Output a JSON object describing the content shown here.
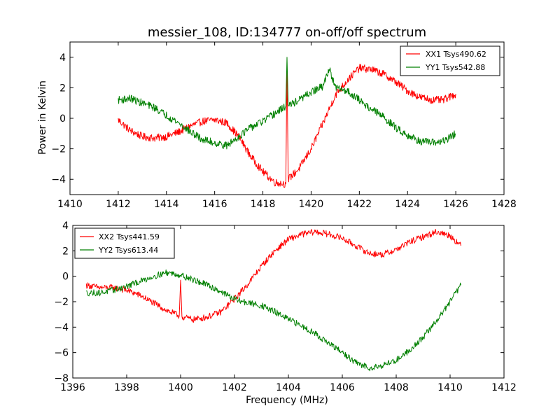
{
  "figure": {
    "title": "messier_108, ID:134777 on-off/off spectrum",
    "ylabel": "Power in Kelvin",
    "xlabel": "Frequency (MHz)"
  },
  "chart_data": [
    {
      "type": "line",
      "title": "messier_108, ID:134777 on-off/off spectrum",
      "xlabel": "",
      "ylabel": "Power in Kelvin",
      "xlim": [
        1410,
        1428
      ],
      "ylim": [
        -5,
        5
      ],
      "xticks": [
        1410,
        1412,
        1414,
        1416,
        1418,
        1420,
        1422,
        1424,
        1426,
        1428
      ],
      "yticks": [
        -4,
        -2,
        0,
        2,
        4
      ],
      "legend_position": "top-right",
      "series": [
        {
          "name": "XX1 Tsys490.62",
          "color": "#ff0000",
          "noise": 0.25,
          "points": [
            [
              1412.0,
              -0.1
            ],
            [
              1412.5,
              -0.8
            ],
            [
              1413.0,
              -1.2
            ],
            [
              1413.5,
              -1.3
            ],
            [
              1414.0,
              -1.2
            ],
            [
              1414.5,
              -0.9
            ],
            [
              1415.0,
              -0.5
            ],
            [
              1415.5,
              -0.2
            ],
            [
              1416.0,
              -0.1
            ],
            [
              1416.5,
              -0.3
            ],
            [
              1417.0,
              -1.2
            ],
            [
              1417.5,
              -2.5
            ],
            [
              1418.0,
              -3.5
            ],
            [
              1418.5,
              -4.2
            ],
            [
              1418.95,
              -4.3
            ],
            [
              1419.0,
              3.3
            ],
            [
              1419.05,
              -4.0
            ],
            [
              1419.5,
              -3.3
            ],
            [
              1420.0,
              -2.0
            ],
            [
              1420.5,
              -0.3
            ],
            [
              1421.0,
              1.5
            ],
            [
              1421.5,
              2.5
            ],
            [
              1422.0,
              3.3
            ],
            [
              1422.5,
              3.2
            ],
            [
              1423.0,
              2.9
            ],
            [
              1423.5,
              2.4
            ],
            [
              1424.0,
              1.8
            ],
            [
              1424.5,
              1.4
            ],
            [
              1425.0,
              1.2
            ],
            [
              1425.5,
              1.2
            ],
            [
              1426.0,
              1.6
            ]
          ]
        },
        {
          "name": "YY1 Tsys542.88",
          "color": "#008000",
          "noise": 0.25,
          "points": [
            [
              1412.0,
              1.2
            ],
            [
              1412.5,
              1.3
            ],
            [
              1413.0,
              1.0
            ],
            [
              1413.5,
              0.7
            ],
            [
              1414.0,
              0.2
            ],
            [
              1414.5,
              -0.3
            ],
            [
              1415.0,
              -0.9
            ],
            [
              1415.5,
              -1.4
            ],
            [
              1416.0,
              -1.6
            ],
            [
              1416.5,
              -1.8
            ],
            [
              1417.0,
              -1.2
            ],
            [
              1417.5,
              -0.6
            ],
            [
              1418.0,
              -0.2
            ],
            [
              1418.5,
              0.3
            ],
            [
              1418.95,
              0.8
            ],
            [
              1419.0,
              4.0
            ],
            [
              1419.05,
              0.8
            ],
            [
              1419.5,
              1.2
            ],
            [
              1420.0,
              1.7
            ],
            [
              1420.5,
              2.1
            ],
            [
              1420.75,
              3.3
            ],
            [
              1421.0,
              2.0
            ],
            [
              1421.5,
              1.8
            ],
            [
              1422.0,
              1.2
            ],
            [
              1422.5,
              0.6
            ],
            [
              1423.0,
              0.1
            ],
            [
              1423.5,
              -0.6
            ],
            [
              1424.0,
              -1.1
            ],
            [
              1424.5,
              -1.5
            ],
            [
              1425.0,
              -1.6
            ],
            [
              1425.5,
              -1.5
            ],
            [
              1426.0,
              -1.0
            ]
          ]
        }
      ]
    },
    {
      "type": "line",
      "title": "",
      "xlabel": "Frequency (MHz)",
      "ylabel": "",
      "xlim": [
        1396,
        1412
      ],
      "ylim": [
        -8,
        4
      ],
      "xticks": [
        1396,
        1398,
        1400,
        1402,
        1404,
        1406,
        1408,
        1410,
        1412
      ],
      "yticks": [
        -8,
        -6,
        -4,
        -2,
        0,
        2,
        4
      ],
      "legend_position": "top-left",
      "series": [
        {
          "name": "XX2 Tsys441.59",
          "color": "#ff0000",
          "noise": 0.25,
          "points": [
            [
              1396.5,
              -0.7
            ],
            [
              1397.0,
              -0.9
            ],
            [
              1397.5,
              -0.9
            ],
            [
              1398.0,
              -1.1
            ],
            [
              1398.5,
              -1.5
            ],
            [
              1399.0,
              -2.1
            ],
            [
              1399.5,
              -2.7
            ],
            [
              1399.95,
              -3.1
            ],
            [
              1400.0,
              -0.3
            ],
            [
              1400.05,
              -3.2
            ],
            [
              1400.5,
              -3.4
            ],
            [
              1401.0,
              -3.2
            ],
            [
              1401.5,
              -2.8
            ],
            [
              1402.0,
              -1.8
            ],
            [
              1402.5,
              -0.6
            ],
            [
              1403.0,
              0.8
            ],
            [
              1403.5,
              2.0
            ],
            [
              1404.0,
              2.9
            ],
            [
              1404.5,
              3.3
            ],
            [
              1405.0,
              3.5
            ],
            [
              1405.5,
              3.3
            ],
            [
              1406.0,
              3.0
            ],
            [
              1406.5,
              2.4
            ],
            [
              1407.0,
              1.8
            ],
            [
              1407.5,
              1.7
            ],
            [
              1408.0,
              2.1
            ],
            [
              1408.5,
              2.7
            ],
            [
              1409.0,
              3.1
            ],
            [
              1409.5,
              3.5
            ],
            [
              1410.0,
              3.2
            ],
            [
              1410.4,
              2.4
            ]
          ]
        },
        {
          "name": "YY2 Tsys613.44",
          "color": "#008000",
          "noise": 0.25,
          "points": [
            [
              1396.5,
              -1.3
            ],
            [
              1397.0,
              -1.3
            ],
            [
              1397.5,
              -1.1
            ],
            [
              1398.0,
              -0.8
            ],
            [
              1398.5,
              -0.4
            ],
            [
              1399.0,
              0.0
            ],
            [
              1399.5,
              0.3
            ],
            [
              1400.0,
              0.1
            ],
            [
              1400.5,
              -0.3
            ],
            [
              1401.0,
              -0.7
            ],
            [
              1401.5,
              -1.2
            ],
            [
              1402.0,
              -1.8
            ],
            [
              1402.5,
              -2.1
            ],
            [
              1403.0,
              -2.3
            ],
            [
              1403.5,
              -2.8
            ],
            [
              1404.0,
              -3.4
            ],
            [
              1404.5,
              -3.9
            ],
            [
              1405.0,
              -4.5
            ],
            [
              1405.5,
              -5.3
            ],
            [
              1406.0,
              -6.0
            ],
            [
              1406.5,
              -6.8
            ],
            [
              1407.0,
              -7.2
            ],
            [
              1407.5,
              -7.0
            ],
            [
              1408.0,
              -6.6
            ],
            [
              1408.5,
              -5.8
            ],
            [
              1409.0,
              -4.8
            ],
            [
              1409.5,
              -3.5
            ],
            [
              1410.0,
              -2.0
            ],
            [
              1410.4,
              -0.7
            ]
          ]
        }
      ]
    }
  ]
}
